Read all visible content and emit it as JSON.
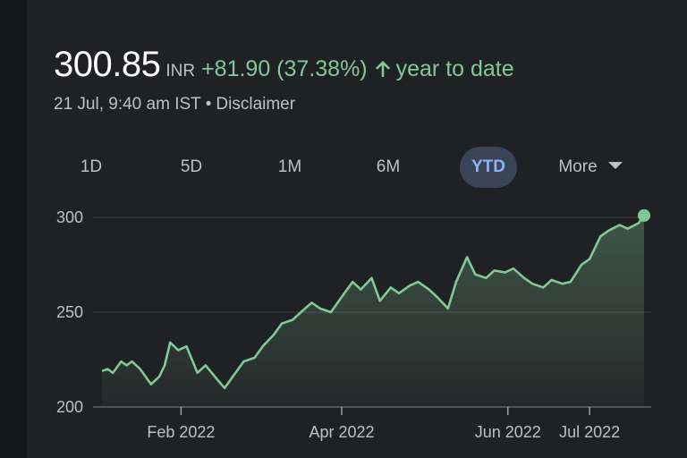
{
  "quote": {
    "price": "300.85",
    "currency": "INR",
    "change": "+81.90 (37.38%)",
    "period_label": "year to date",
    "timestamp": "21 Jul, 9:40 am IST",
    "separator": "•",
    "disclaimer": "Disclaimer"
  },
  "tabs": [
    {
      "label": "1D"
    },
    {
      "label": "5D"
    },
    {
      "label": "1M"
    },
    {
      "label": "6M"
    },
    {
      "label": "YTD",
      "active": true
    },
    {
      "label": "More"
    }
  ],
  "colors": {
    "positive": "#81c995",
    "active_tab_bg": "#394457",
    "active_tab_text": "#8ab4f8",
    "card_bg": "#202124"
  },
  "chart_data": {
    "type": "area",
    "title": "",
    "xlabel": "",
    "ylabel": "",
    "ylim": [
      200,
      300
    ],
    "yticks": [
      200,
      250,
      300
    ],
    "grid": true,
    "x_ticks": [
      {
        "label": "Feb 2022",
        "date": "2022-02-01"
      },
      {
        "label": "Apr 2022",
        "date": "2022-04-01"
      },
      {
        "label": "Jun 2022",
        "date": "2022-06-01"
      },
      {
        "label": "Jul 2022",
        "date": "2022-07-01"
      }
    ],
    "series": [
      {
        "x": [
          "2022-01-03",
          "2022-01-05",
          "2022-01-07",
          "2022-01-10",
          "2022-01-12",
          "2022-01-14",
          "2022-01-17",
          "2022-01-19",
          "2022-01-21",
          "2022-01-24",
          "2022-01-26",
          "2022-01-28",
          "2022-01-31",
          "2022-02-03",
          "2022-02-07",
          "2022-02-10",
          "2022-02-14",
          "2022-02-17",
          "2022-02-21",
          "2022-02-24",
          "2022-02-28",
          "2022-03-03",
          "2022-03-07",
          "2022-03-10",
          "2022-03-14",
          "2022-03-17",
          "2022-03-21",
          "2022-03-24",
          "2022-03-28",
          "2022-04-01",
          "2022-04-05",
          "2022-04-08",
          "2022-04-12",
          "2022-04-15",
          "2022-04-19",
          "2022-04-22",
          "2022-04-26",
          "2022-04-29",
          "2022-05-03",
          "2022-05-06",
          "2022-05-10",
          "2022-05-13",
          "2022-05-17",
          "2022-05-20",
          "2022-05-24",
          "2022-05-27",
          "2022-05-31",
          "2022-06-03",
          "2022-06-07",
          "2022-06-10",
          "2022-06-14",
          "2022-06-17",
          "2022-06-21",
          "2022-06-24",
          "2022-06-28",
          "2022-07-01",
          "2022-07-05",
          "2022-07-08",
          "2022-07-12",
          "2022-07-15",
          "2022-07-19",
          "2022-07-21"
        ],
        "values": [
          219,
          220,
          218,
          224,
          222,
          224,
          220,
          216,
          212,
          216,
          222,
          234,
          230,
          232,
          218,
          222,
          215,
          210,
          218,
          224,
          226,
          232,
          238,
          244,
          246,
          250,
          255,
          252,
          250,
          258,
          266,
          262,
          268,
          256,
          263,
          260,
          264,
          266,
          262,
          258,
          252,
          266,
          279,
          270,
          268,
          272,
          271,
          273,
          268,
          265,
          263,
          267,
          265,
          266,
          275,
          278,
          290,
          293,
          296,
          294,
          297,
          301
        ]
      }
    ]
  }
}
